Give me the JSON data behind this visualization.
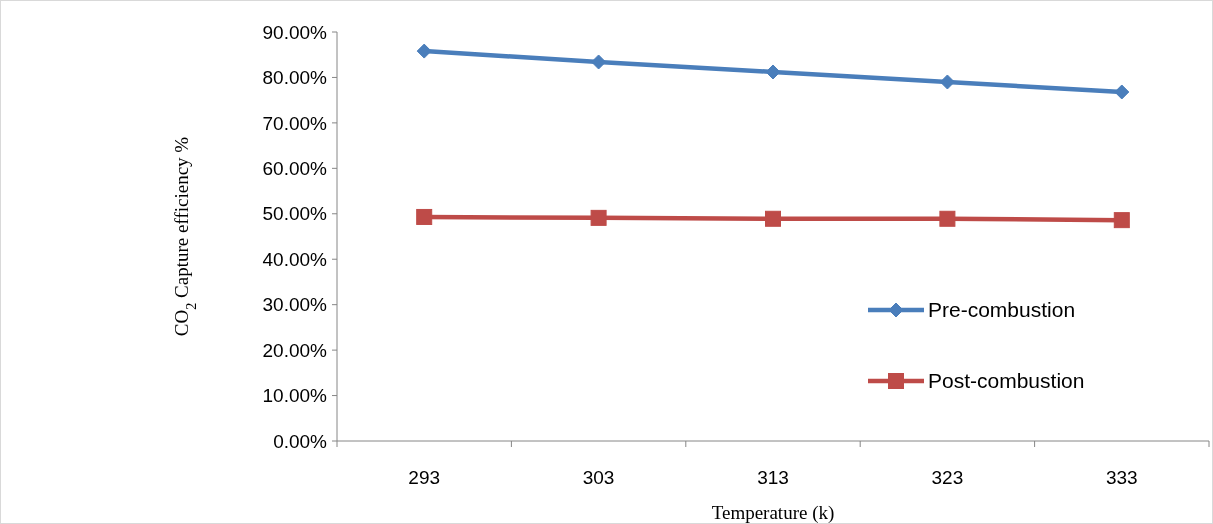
{
  "chart_data": {
    "type": "line",
    "categories": [
      "293",
      "303",
      "313",
      "323",
      "333"
    ],
    "series": [
      {
        "name": "Pre-combustion",
        "color": "#4a7ebb",
        "marker": "diamond",
        "values": [
          85.8,
          83.4,
          81.2,
          79.0,
          76.8
        ]
      },
      {
        "name": "Post-combustion",
        "color": "#be4b48",
        "marker": "square",
        "values": [
          49.3,
          49.1,
          48.9,
          48.9,
          48.6
        ]
      }
    ],
    "ylim": [
      0,
      90
    ],
    "yticks": [
      {
        "value": 0,
        "label": "0.00%"
      },
      {
        "value": 10,
        "label": "10.00%"
      },
      {
        "value": 20,
        "label": "20.00%"
      },
      {
        "value": 30,
        "label": "30.00%"
      },
      {
        "value": 40,
        "label": "40.00%"
      },
      {
        "value": 50,
        "label": "50.00%"
      },
      {
        "value": 60,
        "label": "60.00%"
      },
      {
        "value": 70,
        "label": "70.00%"
      },
      {
        "value": 80,
        "label": "80.00%"
      },
      {
        "value": 90,
        "label": "90.00%"
      }
    ],
    "xlabel": "Temperature (k)",
    "ylabel": "CO$_{2}$ Capture efficiency %",
    "legend": "right",
    "grid": false,
    "line_style": "solid"
  }
}
